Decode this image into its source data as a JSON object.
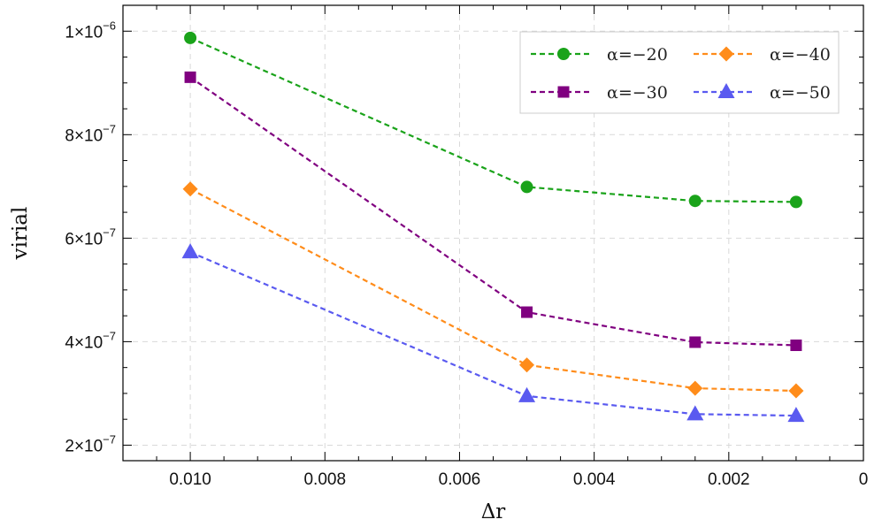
{
  "chart_data": {
    "type": "line",
    "xlabel": "Δr",
    "ylabel": "virial",
    "xlim": [
      0.011,
      0.0
    ],
    "ylim": [
      1.7e-07,
      1.05e-06
    ],
    "x_ticks": [
      {
        "value": 0.01,
        "label": "0.010"
      },
      {
        "value": 0.008,
        "label": "0.008"
      },
      {
        "value": 0.006,
        "label": "0.006"
      },
      {
        "value": 0.004,
        "label": "0.004"
      },
      {
        "value": 0.002,
        "label": "0.002"
      },
      {
        "value": 0.0,
        "label": "0"
      }
    ],
    "y_ticks": [
      {
        "value": 2e-07,
        "mantissa": "2",
        "exponent": "-7"
      },
      {
        "value": 4e-07,
        "mantissa": "4",
        "exponent": "-7"
      },
      {
        "value": 6e-07,
        "mantissa": "6",
        "exponent": "-7"
      },
      {
        "value": 8e-07,
        "mantissa": "8",
        "exponent": "-7"
      },
      {
        "value": 1e-06,
        "mantissa": "1",
        "exponent": "-6"
      }
    ],
    "grid": true,
    "legend_position": "top-right",
    "x": [
      0.01,
      0.005,
      0.0025,
      0.001
    ],
    "series": [
      {
        "name": "α=−20",
        "color": "#1aa31a",
        "marker": "circle",
        "values": [
          9.87e-07,
          6.99e-07,
          6.72e-07,
          6.7e-07
        ]
      },
      {
        "name": "α=−30",
        "color": "#800080",
        "marker": "square",
        "values": [
          9.11e-07,
          4.57e-07,
          3.99e-07,
          3.93e-07
        ]
      },
      {
        "name": "α=−40",
        "color": "#ff8c1a",
        "marker": "diamond",
        "values": [
          6.95e-07,
          3.55e-07,
          3.1e-07,
          3.05e-07
        ]
      },
      {
        "name": "α=−50",
        "color": "#5a5af0",
        "marker": "triangle",
        "values": [
          5.73e-07,
          2.95e-07,
          2.6e-07,
          2.57e-07
        ]
      }
    ]
  }
}
